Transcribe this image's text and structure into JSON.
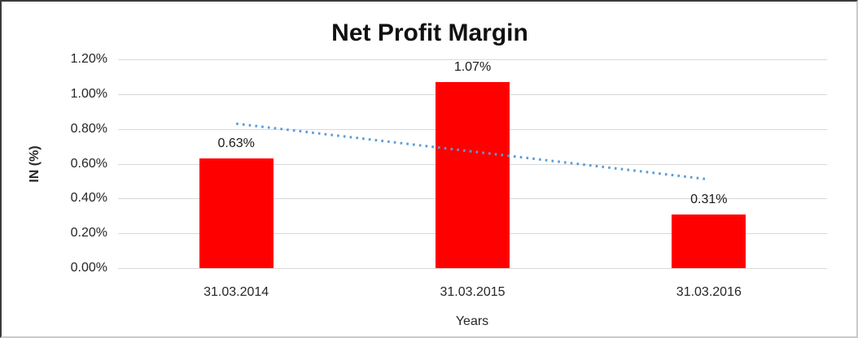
{
  "chart_data": {
    "type": "bar",
    "title": "Net Profit Margin",
    "xlabel": "Years",
    "ylabel": "IN (%)",
    "categories": [
      "31.03.2014",
      "31.03.2015",
      "31.03.2016"
    ],
    "values": [
      0.63,
      1.07,
      0.31
    ],
    "data_labels": [
      "0.63%",
      "1.07%",
      "0.31%"
    ],
    "y_ticks": [
      "0.00%",
      "0.20%",
      "0.40%",
      "0.60%",
      "0.80%",
      "1.00%",
      "1.20%"
    ],
    "ylim": [
      0,
      1.2
    ],
    "grid": true,
    "legend": "none",
    "bar_color": "#ff0000",
    "gridline_color": "#d9d9d9",
    "text_color": "#262626",
    "trendline": {
      "type": "linear",
      "style": "dotted",
      "color": "#5b9bd5",
      "start_value": 0.83,
      "end_value": 0.51
    }
  }
}
